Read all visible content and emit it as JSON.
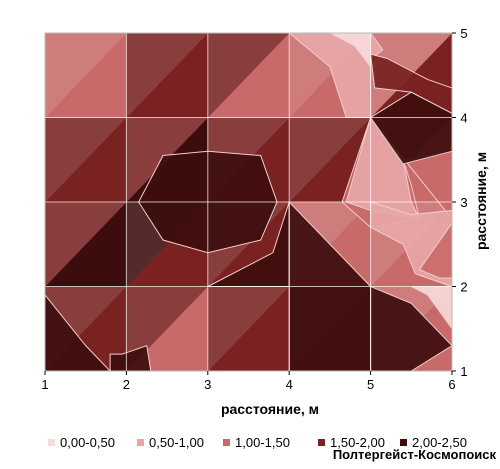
{
  "chart_data": {
    "type": "heatmap",
    "subtype": "surface-contour",
    "xlabel": "расстояние, м",
    "ylabel": "расстояние, м",
    "xlim": [
      1,
      6
    ],
    "ylim": [
      1,
      5
    ],
    "x_ticks": [
      "1",
      "2",
      "3",
      "4",
      "5",
      "6"
    ],
    "y_ticks": [
      "1",
      "2",
      "3",
      "4",
      "5"
    ],
    "grid": true,
    "legend_position": "bottom",
    "bands": [
      {
        "label": "0,00-0,50",
        "color": "#f7dada"
      },
      {
        "label": "0,50-1,00",
        "color": "#e8a7a7"
      },
      {
        "label": "1,00-1,50",
        "color": "#c96a6a"
      },
      {
        "label": "1,50-2,00",
        "color": "#7a2222"
      },
      {
        "label": "2,00-2,50",
        "color": "#3d0d0d"
      }
    ],
    "x": [
      1,
      2,
      3,
      4,
      5,
      6
    ],
    "y": [
      1,
      2,
      3,
      4,
      5
    ],
    "z": [
      [
        1.8,
        1.3,
        1.4,
        1.8,
        1.9,
        1.6
      ],
      [
        1.8,
        2.0,
        1.5,
        1.8,
        1.4,
        0.9
      ],
      [
        1.8,
        2.3,
        2.4,
        1.6,
        1.0,
        1.0
      ],
      [
        1.4,
        1.6,
        1.6,
        1.3,
        2.0,
        1.5
      ],
      [
        1.6,
        1.4,
        1.5,
        1.4,
        0.6,
        1.6
      ]
    ],
    "regions": [
      {
        "band": 4,
        "points": [
          [
            2.45,
            3.55
          ],
          [
            3.0,
            3.6
          ],
          [
            3.65,
            3.55
          ],
          [
            3.85,
            3.0
          ],
          [
            3.65,
            2.55
          ],
          [
            3.0,
            2.4
          ],
          [
            2.45,
            2.55
          ],
          [
            2.15,
            3.0
          ]
        ]
      },
      {
        "band": 1,
        "points": [
          [
            4.0,
            5.0
          ],
          [
            4.5,
            4.6
          ],
          [
            4.7,
            4.0
          ],
          [
            5.0,
            4.0
          ],
          [
            5.0,
            5.0
          ]
        ]
      },
      {
        "band": 0,
        "points": [
          [
            4.5,
            5.0
          ],
          [
            4.8,
            4.85
          ],
          [
            5.0,
            4.6
          ],
          [
            5.0,
            5.0
          ]
        ]
      },
      {
        "band": 1,
        "points": [
          [
            5.0,
            5.0
          ],
          [
            5.15,
            4.8
          ],
          [
            5.0,
            4.7
          ]
        ]
      },
      {
        "band": 2,
        "points": [
          [
            5.0,
            4.0
          ],
          [
            4.65,
            3.0
          ],
          [
            5.0,
            2.7
          ],
          [
            5.6,
            2.8
          ],
          [
            5.5,
            3.2
          ],
          [
            5.4,
            3.5
          ],
          [
            6.0,
            3.6
          ],
          [
            6.0,
            2.8
          ],
          [
            5.0,
            4.0
          ]
        ]
      },
      {
        "band": 1,
        "points": [
          [
            4.7,
            3.0
          ],
          [
            5.0,
            2.9
          ],
          [
            5.6,
            2.8
          ],
          [
            5.5,
            3.0
          ],
          [
            5.4,
            3.5
          ],
          [
            5.0,
            4.0
          ]
        ]
      },
      {
        "band": 4,
        "points": [
          [
            5.0,
            4.0
          ],
          [
            5.4,
            3.45
          ],
          [
            6.0,
            3.6
          ],
          [
            6.0,
            4.05
          ],
          [
            5.5,
            4.3
          ]
        ]
      },
      {
        "band": 3,
        "points": [
          [
            5.0,
            4.75
          ],
          [
            5.2,
            4.7
          ],
          [
            5.7,
            4.45
          ],
          [
            6.0,
            4.35
          ],
          [
            6.0,
            4.05
          ],
          [
            5.5,
            4.3
          ],
          [
            5.05,
            4.35
          ]
        ]
      },
      {
        "band": 1,
        "points": [
          [
            5.0,
            3.0
          ],
          [
            5.5,
            2.85
          ],
          [
            6.0,
            2.9
          ],
          [
            6.0,
            2.0
          ],
          [
            5.55,
            2.15
          ],
          [
            5.4,
            2.5
          ],
          [
            5.0,
            2.7
          ]
        ]
      },
      {
        "band": 0,
        "points": [
          [
            5.5,
            2.0
          ],
          [
            6.0,
            2.0
          ],
          [
            6.0,
            1.5
          ],
          [
            5.7,
            1.9
          ]
        ]
      },
      {
        "band": 2,
        "points": [
          [
            5.6,
            2.2
          ],
          [
            6.0,
            2.75
          ],
          [
            6.0,
            2.1
          ],
          [
            5.85,
            2.1
          ]
        ]
      },
      {
        "band": 4,
        "points": [
          [
            1.0,
            1.0
          ],
          [
            1.0,
            1.9
          ],
          [
            1.5,
            1.3
          ],
          [
            1.8,
            1.0
          ]
        ]
      },
      {
        "band": 4,
        "points": [
          [
            3.0,
            2.0
          ],
          [
            4.0,
            2.0
          ],
          [
            4.0,
            3.0
          ],
          [
            3.8,
            2.4
          ]
        ]
      },
      {
        "band": 4,
        "points": [
          [
            4.0,
            1.0
          ],
          [
            4.0,
            3.0
          ],
          [
            4.5,
            2.5
          ],
          [
            5.0,
            2.0
          ],
          [
            5.0,
            1.0
          ]
        ]
      },
      {
        "band": 4,
        "points": [
          [
            5.0,
            2.0
          ],
          [
            5.0,
            1.0
          ],
          [
            5.5,
            1.0
          ],
          [
            6.0,
            1.3
          ],
          [
            5.5,
            1.8
          ]
        ]
      },
      {
        "band": 4,
        "points": [
          [
            1.8,
            1.0
          ],
          [
            1.8,
            1.2
          ],
          [
            1.95,
            1.2
          ],
          [
            2.25,
            1.3
          ],
          [
            2.3,
            1.0
          ]
        ]
      }
    ]
  },
  "watermark": "Полтергейст-Космопоиск"
}
